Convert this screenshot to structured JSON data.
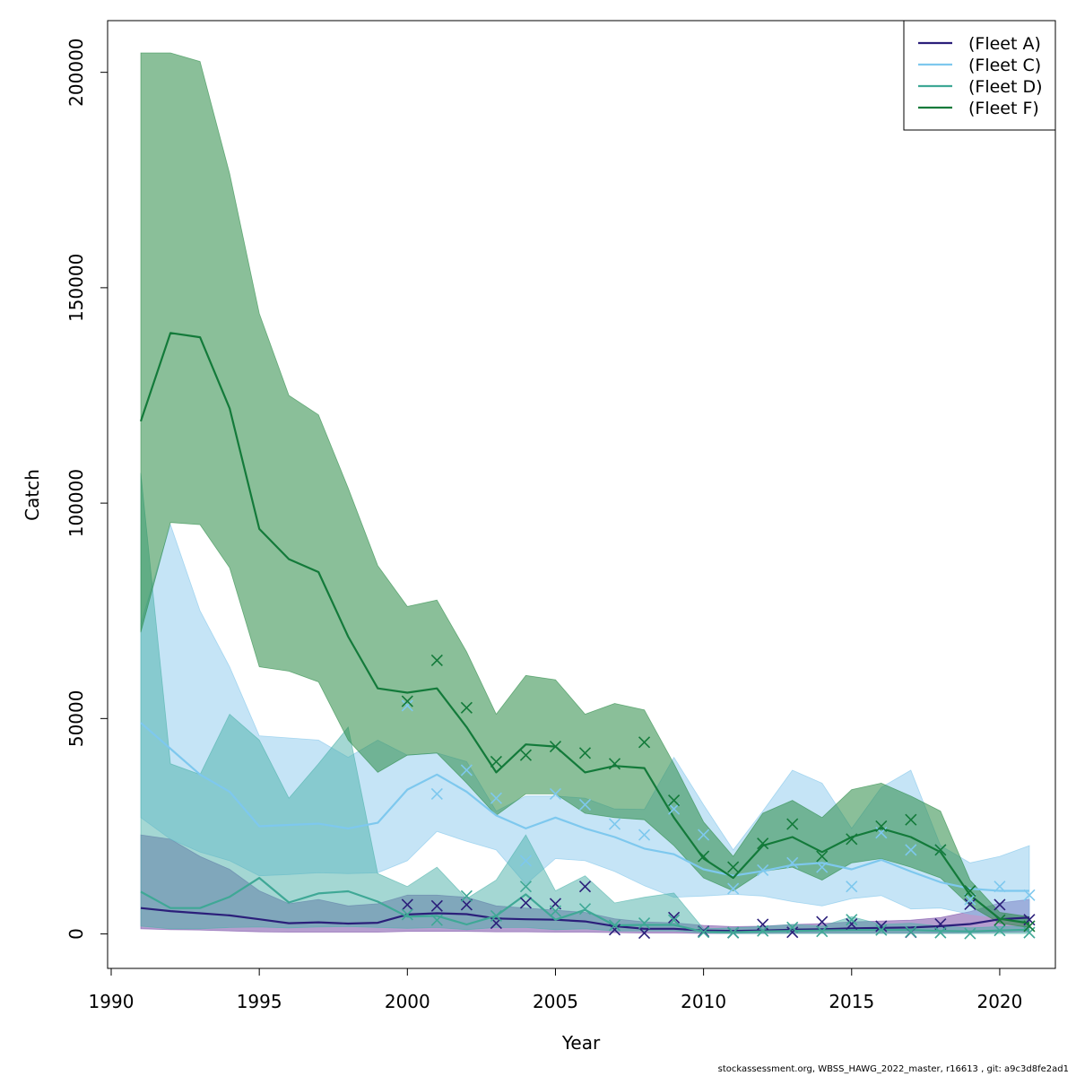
{
  "chart_data": {
    "type": "line",
    "xlabel": "Year",
    "ylabel": "Catch",
    "xlim": [
      1990,
      2022
    ],
    "ylim": [
      -8000,
      212000
    ],
    "x_ticks": [
      1990,
      1995,
      2000,
      2005,
      2010,
      2015,
      2020
    ],
    "y_ticks": [
      0,
      50000,
      100000,
      150000,
      200000
    ],
    "grid": false,
    "legend_position": "top-right",
    "x": [
      1991,
      1992,
      1993,
      1994,
      1995,
      1996,
      1997,
      1998,
      1999,
      2000,
      2001,
      2002,
      2003,
      2004,
      2005,
      2006,
      2007,
      2008,
      2009,
      2010,
      2011,
      2012,
      2013,
      2014,
      2015,
      2016,
      2017,
      2018,
      2019,
      2020,
      2021
    ],
    "series": [
      {
        "name": "(Fleet A)",
        "line_color": "#2b1f7a",
        "band_color": "#7a4fa8",
        "band_opacity": 0.55,
        "estimate": [
          6000,
          5300,
          4800,
          4300,
          3400,
          2500,
          2700,
          2400,
          2600,
          4500,
          4800,
          4600,
          3600,
          3400,
          3300,
          2900,
          1800,
          1200,
          1200,
          800,
          700,
          800,
          1000,
          1100,
          1300,
          1400,
          1500,
          1800,
          2300,
          3400,
          3800
        ],
        "lower": [
          1200,
          1000,
          900,
          700,
          500,
          400,
          400,
          400,
          400,
          600,
          600,
          600,
          500,
          500,
          400,
          400,
          300,
          200,
          200,
          100,
          100,
          100,
          200,
          200,
          200,
          200,
          200,
          200,
          300,
          400,
          500
        ],
        "upper": [
          23000,
          22000,
          18000,
          15000,
          10000,
          7000,
          8000,
          6500,
          7000,
          9000,
          9000,
          8500,
          6500,
          6000,
          5500,
          5000,
          3500,
          2800,
          2600,
          2000,
          1700,
          1800,
          2200,
          2400,
          2800,
          3000,
          3200,
          3800,
          5200,
          7200,
          8000
        ],
        "observed": [
          null,
          null,
          null,
          null,
          null,
          null,
          null,
          null,
          null,
          6800,
          6500,
          6800,
          2500,
          7200,
          7000,
          11000,
          1000,
          200,
          3800,
          600,
          300,
          2200,
          400,
          2800,
          2300,
          1800,
          400,
          2300,
          6900,
          6800,
          3300
        ]
      },
      {
        "name": "(Fleet C)",
        "line_color": "#7ec8ee",
        "band_color": "#7ec4ea",
        "band_opacity": 0.45,
        "estimate": [
          49000,
          43000,
          37000,
          33000,
          25000,
          25300,
          25600,
          24500,
          25800,
          33500,
          37000,
          33000,
          27500,
          24500,
          27000,
          24500,
          22500,
          19800,
          18500,
          15000,
          13500,
          14600,
          16000,
          16500,
          15000,
          17200,
          14500,
          12000,
          10500,
          10000,
          10000
        ],
        "lower": [
          27000,
          22000,
          19000,
          17000,
          13500,
          13800,
          14200,
          14000,
          14200,
          17000,
          23800,
          21500,
          19500,
          11500,
          17500,
          17000,
          14500,
          11200,
          8500,
          8800,
          9200,
          8800,
          7500,
          6500,
          8200,
          8900,
          5800,
          6000,
          4600,
          3800,
          2800
        ],
        "upper": [
          72000,
          95000,
          75000,
          62000,
          46000,
          45500,
          45000,
          41000,
          45000,
          41500,
          42000,
          40000,
          28500,
          32000,
          32000,
          31500,
          29000,
          28900,
          41000,
          30000,
          19500,
          28500,
          38000,
          35000,
          24500,
          34000,
          38000,
          20500,
          16500,
          18000,
          20500
        ],
        "observed": [
          null,
          null,
          null,
          null,
          null,
          null,
          null,
          null,
          null,
          53000,
          32500,
          38000,
          31500,
          17000,
          32500,
          30000,
          25500,
          23000,
          29000,
          23000,
          10500,
          14800,
          16500,
          15500,
          11000,
          23500,
          19500,
          19500,
          8000,
          11000,
          9000
        ]
      },
      {
        "name": "(Fleet D)",
        "line_color": "#3fa896",
        "band_color": "#4ab0a8",
        "band_opacity": 0.5,
        "estimate": [
          9800,
          6000,
          6000,
          8600,
          13000,
          7300,
          9400,
          9900,
          7500,
          4000,
          4200,
          2200,
          4200,
          9200,
          3300,
          5600,
          2000,
          2100,
          2100,
          500,
          400,
          600,
          700,
          800,
          900,
          900,
          900,
          700,
          600,
          800,
          1000
        ],
        "lower": [
          1800,
          1200,
          1200,
          1500,
          1600,
          1400,
          1600,
          1700,
          1500,
          1300,
          1500,
          1000,
          1500,
          1500,
          1000,
          1200,
          700,
          700,
          700,
          200,
          100,
          100,
          100,
          100,
          100,
          100,
          100,
          100,
          100,
          100,
          100
        ],
        "upper": [
          107000,
          39500,
          37000,
          51000,
          45000,
          31500,
          39500,
          48000,
          14000,
          11000,
          15500,
          8200,
          12500,
          23000,
          10000,
          13500,
          7200,
          8500,
          9500,
          1200,
          1400,
          1700,
          2200,
          1800,
          4000,
          2200,
          2500,
          1800,
          1400,
          1700,
          1800
        ],
        "observed": [
          null,
          null,
          null,
          null,
          null,
          null,
          null,
          null,
          null,
          4500,
          3200,
          8800,
          4200,
          11000,
          5300,
          5800,
          2000,
          2500,
          3200,
          400,
          300,
          700,
          1500,
          600,
          3300,
          900,
          500,
          300,
          100,
          800,
          300
        ]
      },
      {
        "name": "(Fleet F)",
        "line_color": "#137a3a",
        "band_color": "#2a8a46",
        "band_opacity": 0.55,
        "estimate": [
          119000,
          139500,
          138500,
          122000,
          94000,
          87000,
          84000,
          69000,
          57000,
          56000,
          57000,
          48000,
          37500,
          44000,
          43500,
          37500,
          39000,
          38500,
          27000,
          17500,
          13000,
          20500,
          22500,
          19000,
          22500,
          24500,
          22500,
          19000,
          9000,
          3500,
          2500
        ],
        "lower": [
          70000,
          95500,
          95000,
          85000,
          62000,
          61000,
          58500,
          45000,
          37500,
          41500,
          42000,
          35000,
          27500,
          32500,
          32500,
          28000,
          27000,
          26500,
          20500,
          13000,
          10000,
          14500,
          15500,
          12500,
          16500,
          17500,
          15500,
          13000,
          6500,
          2500,
          1500
        ],
        "upper": [
          204500,
          204500,
          202500,
          176500,
          144000,
          125000,
          120500,
          103500,
          85500,
          76000,
          77500,
          65500,
          51000,
          60000,
          59000,
          51000,
          53500,
          52000,
          39500,
          26000,
          18000,
          28000,
          31000,
          27000,
          33500,
          35000,
          32000,
          28500,
          12500,
          5000,
          4000
        ],
        "observed": [
          null,
          null,
          null,
          null,
          null,
          null,
          null,
          null,
          null,
          54000,
          63500,
          52500,
          40000,
          41500,
          43500,
          42000,
          39500,
          44500,
          31000,
          18000,
          15500,
          21000,
          25500,
          18000,
          22000,
          25000,
          26500,
          19500,
          10000,
          3200,
          1800
        ]
      }
    ]
  },
  "footer_text": "stockassessment.org, WBSS_HAWG_2022_master, r16613 , git: a9c3d8fe2ad1"
}
